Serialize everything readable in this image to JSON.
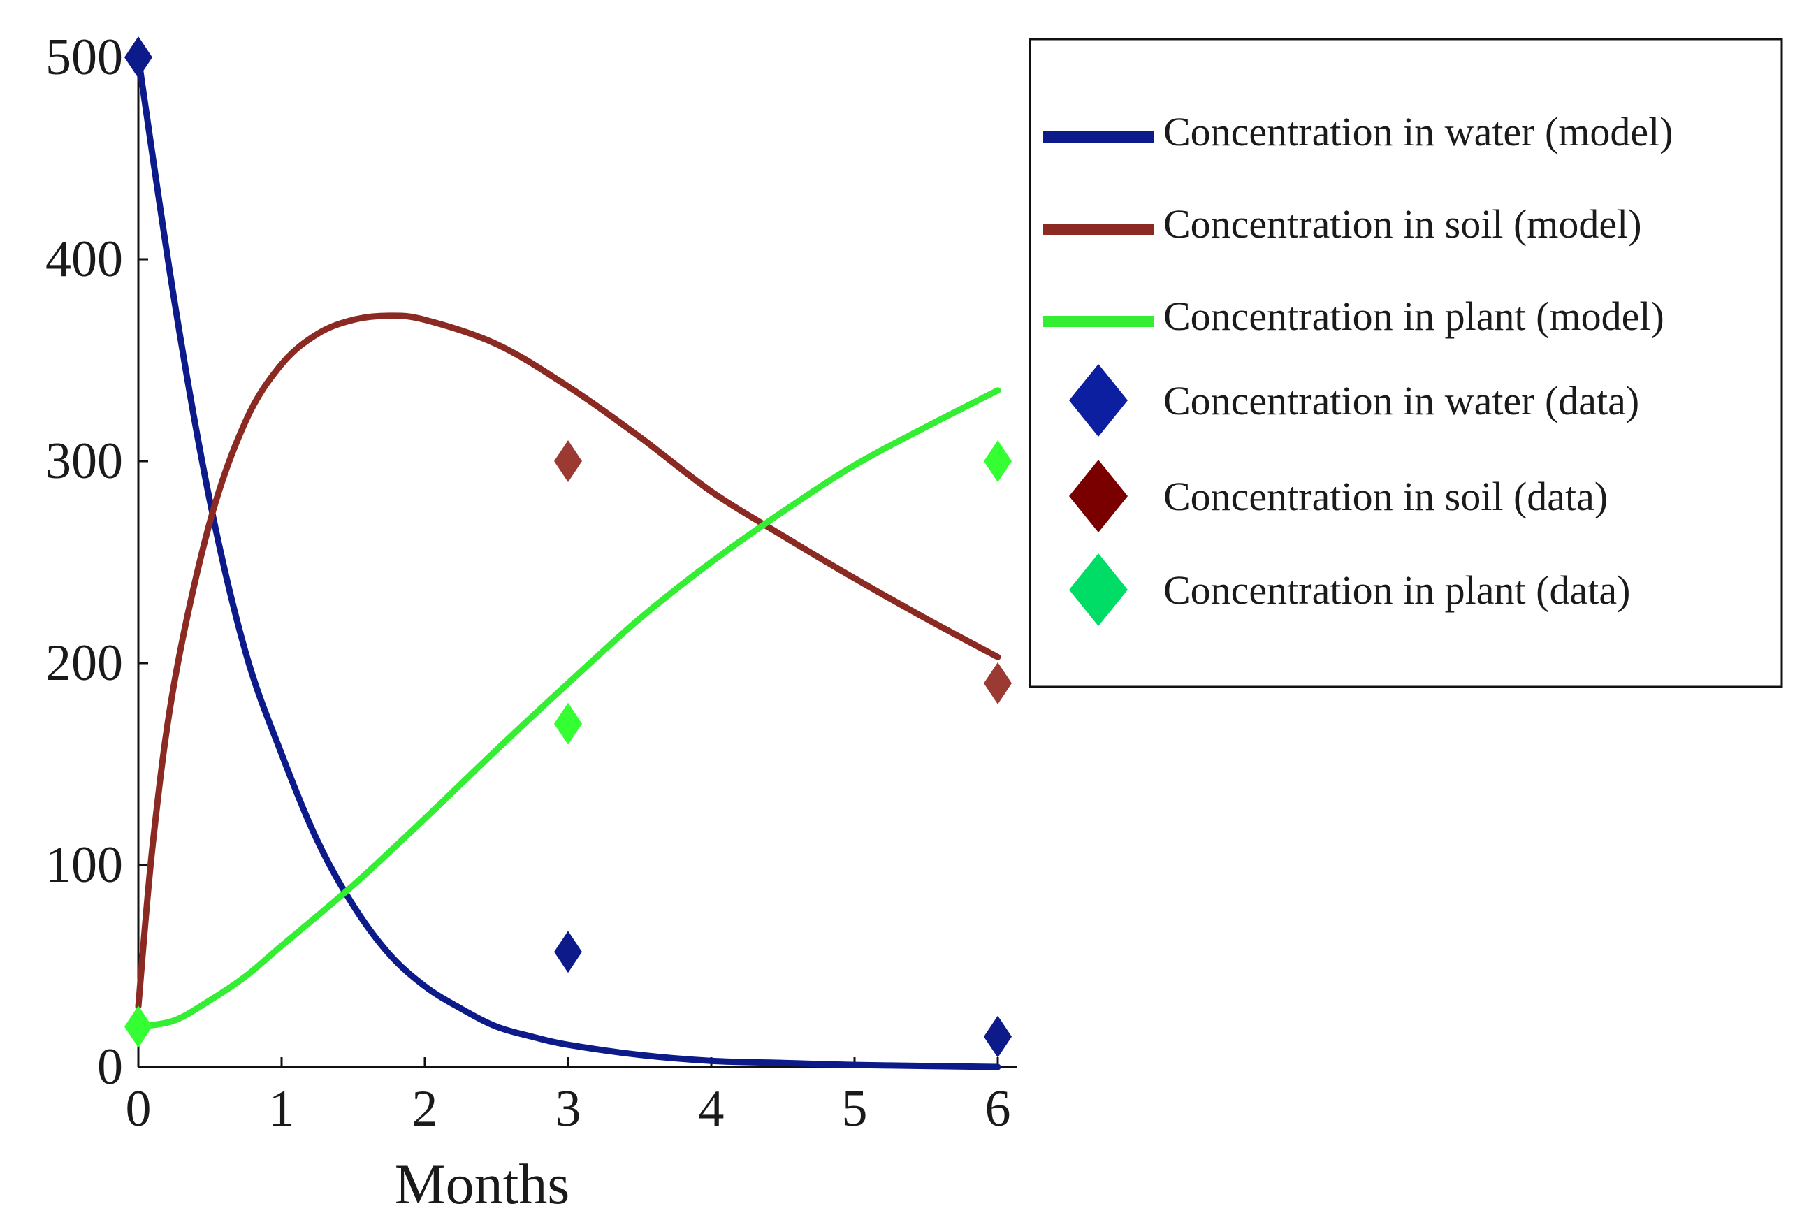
{
  "chart_data": {
    "type": "line",
    "title": "",
    "xlabel": "Months",
    "ylabel": "",
    "xlim": [
      0,
      6
    ],
    "ylim": [
      0,
      500
    ],
    "xticks": [
      "0",
      "1",
      "2",
      "3",
      "4",
      "5",
      "6"
    ],
    "yticks": [
      "0",
      "100",
      "200",
      "300",
      "400",
      "500"
    ],
    "grid": false,
    "legend_position": "top-right",
    "series": [
      {
        "name": "Concentration in water (model)",
        "kind": "line",
        "color": "#0d1a8a",
        "x": [
          0,
          0.25,
          0.5,
          0.75,
          1,
          1.25,
          1.5,
          1.75,
          2,
          2.25,
          2.5,
          2.75,
          3,
          3.5,
          4,
          4.5,
          5,
          5.5,
          6
        ],
        "y": [
          500,
          380,
          280,
          205,
          155,
          112,
          80,
          56,
          40,
          29,
          20,
          15,
          11,
          6,
          3,
          2,
          1,
          0.5,
          0
        ]
      },
      {
        "name": "Concentration in soil (model)",
        "kind": "line",
        "color": "#8b2a22",
        "x": [
          0,
          0.1,
          0.25,
          0.5,
          0.75,
          1,
          1.25,
          1.5,
          1.75,
          2,
          2.5,
          3,
          3.5,
          4,
          4.5,
          5,
          5.5,
          6
        ],
        "y": [
          30,
          110,
          190,
          270,
          320,
          348,
          363,
          370,
          372,
          370,
          358,
          337,
          312,
          285,
          263,
          242,
          222,
          203
        ]
      },
      {
        "name": "Concentration in plant (model)",
        "kind": "line",
        "color": "#33ee33",
        "x": [
          0,
          0.25,
          0.5,
          0.75,
          1,
          1.5,
          2,
          2.5,
          3,
          3.5,
          4,
          4.5,
          5,
          5.5,
          6
        ],
        "y": [
          20,
          23,
          33,
          45,
          60,
          90,
          123,
          157,
          190,
          222,
          250,
          275,
          298,
          317,
          335
        ]
      },
      {
        "name": "Concentration in water (data)",
        "kind": "marker",
        "color": "#0d1a8a",
        "legend_color": "#0b1fa0",
        "x": [
          0,
          3,
          6
        ],
        "y": [
          500,
          57,
          15
        ]
      },
      {
        "name": "Concentration in soil (data)",
        "kind": "marker",
        "color": "#9a3a33",
        "legend_color": "#7a0000",
        "x": [
          3,
          6
        ],
        "y": [
          300,
          190
        ]
      },
      {
        "name": "Concentration in plant (data)",
        "kind": "marker",
        "color": "#33ff33",
        "legend_color": "#00dd66",
        "x": [
          0,
          3,
          6
        ],
        "y": [
          20,
          170,
          300
        ]
      }
    ]
  }
}
